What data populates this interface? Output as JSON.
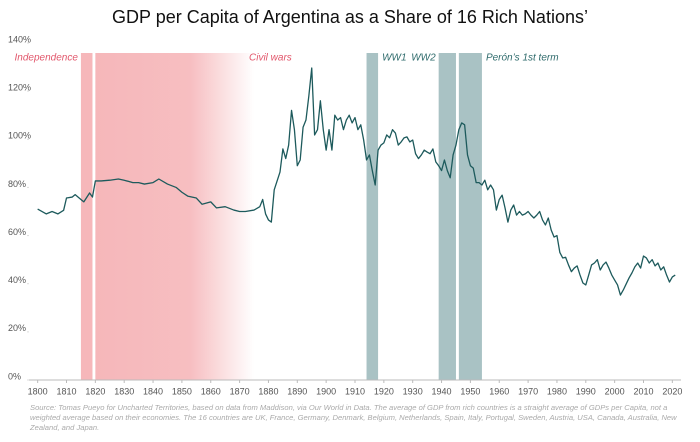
{
  "chart_data": {
    "type": "line",
    "title": "GDP per Capita of Argentina as a Share of 16 Rich Nations’",
    "source": "Source: Tomas Pueyo for Uncharted Territories, based on data from Maddison, via Our World in Data. The average of GDP from rich countries is a straight average of GDPs per Capita, not a weighted average based on their economies. The 16 countries are UK, France, Germany, Denmark, Belgium, Netherlands, Spain, Italy, Portugal, Sweden, Austria, USA, Canada, Australia, New Zealand, and Japan.",
    "xlim": [
      1797,
      2023
    ],
    "ylim": [
      0,
      140
    ],
    "xticks": [
      1800,
      1810,
      1820,
      1830,
      1840,
      1850,
      1860,
      1870,
      1880,
      1890,
      1900,
      1910,
      1920,
      1930,
      1940,
      1950,
      1960,
      1970,
      1980,
      1990,
      2000,
      2010,
      2020
    ],
    "yticks": [
      {
        "value": 0,
        "label": "0%"
      },
      {
        "value": 20,
        "label": "20%"
      },
      {
        "value": 40,
        "label": "40%"
      },
      {
        "value": 60,
        "label": "60%"
      },
      {
        "value": 80,
        "label": "80%"
      },
      {
        "value": 100,
        "label": "100%"
      },
      {
        "value": 120,
        "label": "120%"
      },
      {
        "value": 140,
        "label": "140%"
      }
    ],
    "shaded_regions": [
      {
        "label": "Independence",
        "start": 1815,
        "end": 1819,
        "color": "#f6b7ba"
      },
      {
        "label": "Civil wars",
        "start": 1820,
        "end": 1875,
        "color": "#f6b7ba"
      },
      {
        "label": "WW1",
        "start": 1914,
        "end": 1918,
        "color": "#a9c2c4"
      },
      {
        "label": "WW2",
        "start": 1939,
        "end": 1945,
        "color": "#a9c2c4"
      },
      {
        "label": "Perón’s 1st term",
        "start": 1946,
        "end": 1954,
        "color": "#a9c2c4"
      }
    ],
    "series": [
      {
        "color": "#1d5a5c",
        "x": [
          1800,
          1803,
          1805,
          1807,
          1809,
          1810,
          1812,
          1813,
          1815,
          1816,
          1818,
          1819,
          1820,
          1822,
          1825,
          1828,
          1830,
          1833,
          1835,
          1837,
          1840,
          1842,
          1845,
          1848,
          1850,
          1852,
          1855,
          1857,
          1860,
          1862,
          1865,
          1868,
          1870,
          1872,
          1875,
          1877,
          1878,
          1879,
          1880,
          1881,
          1882,
          1884,
          1885,
          1886,
          1887,
          1888,
          1889,
          1890,
          1891,
          1892,
          1893,
          1894,
          1895,
          1896,
          1897,
          1898,
          1899,
          1900,
          1901,
          1902,
          1903,
          1904,
          1905,
          1906,
          1907,
          1908,
          1909,
          1910,
          1911,
          1912,
          1913,
          1914,
          1915,
          1916,
          1917,
          1918,
          1919,
          1920,
          1921,
          1922,
          1923,
          1924,
          1925,
          1926,
          1927,
          1928,
          1929,
          1930,
          1931,
          1932,
          1933,
          1934,
          1935,
          1936,
          1937,
          1938,
          1939,
          1940,
          1941,
          1942,
          1943,
          1944,
          1945,
          1946,
          1947,
          1948,
          1949,
          1950,
          1951,
          1952,
          1953,
          1954,
          1955,
          1956,
          1957,
          1958,
          1959,
          1960,
          1961,
          1962,
          1963,
          1964,
          1965,
          1966,
          1967,
          1968,
          1969,
          1970,
          1971,
          1972,
          1973,
          1974,
          1975,
          1976,
          1977,
          1978,
          1979,
          1980,
          1981,
          1982,
          1983,
          1984,
          1985,
          1986,
          1987,
          1988,
          1989,
          1990,
          1991,
          1992,
          1993,
          1994,
          1995,
          1996,
          1997,
          1998,
          1999,
          2000,
          2001,
          2002,
          2003,
          2004,
          2005,
          2006,
          2007,
          2008,
          2009,
          2010,
          2011,
          2012,
          2013,
          2014,
          2015,
          2016,
          2017,
          2018,
          2019,
          2020,
          2021
        ],
        "values": [
          71,
          69,
          70,
          69,
          70.5,
          75.6,
          76,
          77,
          75,
          74,
          77.7,
          76,
          82.7,
          82.7,
          83,
          83.5,
          83,
          82,
          82,
          81.4,
          82,
          83.5,
          81.4,
          80,
          78,
          76.4,
          75.6,
          73,
          74,
          71.5,
          72,
          70.6,
          70,
          70,
          70.6,
          72,
          75,
          69,
          66.5,
          65.6,
          79,
          86.4,
          96,
          92,
          97.6,
          112,
          104,
          89,
          91.4,
          105,
          108,
          118,
          129.6,
          101.8,
          104,
          116,
          104,
          95.5,
          104,
          95.5,
          110,
          108,
          109,
          104,
          108,
          110,
          106.8,
          109,
          104,
          106,
          99.7,
          91.4,
          93.5,
          87,
          81,
          95.5,
          97.6,
          98.5,
          101.8,
          100.6,
          104,
          102.6,
          97.6,
          98.9,
          100.6,
          101,
          98.9,
          99.7,
          94,
          92,
          93.5,
          95.5,
          94.7,
          94,
          96,
          90.6,
          89,
          87,
          91.4,
          87,
          84,
          93.5,
          97.6,
          104,
          106.8,
          106,
          93.5,
          89,
          88,
          82,
          82,
          81,
          83,
          79,
          81,
          79,
          70.6,
          75,
          76.8,
          71.5,
          65.6,
          70.6,
          72.7,
          68.5,
          70,
          68.5,
          69,
          70,
          68.5,
          67.3,
          68.5,
          70,
          66.5,
          64.4,
          67.3,
          62.3,
          59.4,
          60,
          53,
          50.7,
          51,
          47.8,
          45,
          46.5,
          47.4,
          43.6,
          40.3,
          39.5,
          43.6,
          47.8,
          48.6,
          50,
          45.7,
          47.8,
          49,
          46.5,
          43.6,
          41.5,
          39.5,
          35.3,
          37.4,
          39.9,
          42.4,
          44.5,
          47,
          48.6,
          46.5,
          51.5,
          50.7,
          48.6,
          50,
          47.4,
          48.6,
          45.7,
          47,
          43.6,
          40.7,
          42.8,
          43.6
        ]
      }
    ]
  }
}
